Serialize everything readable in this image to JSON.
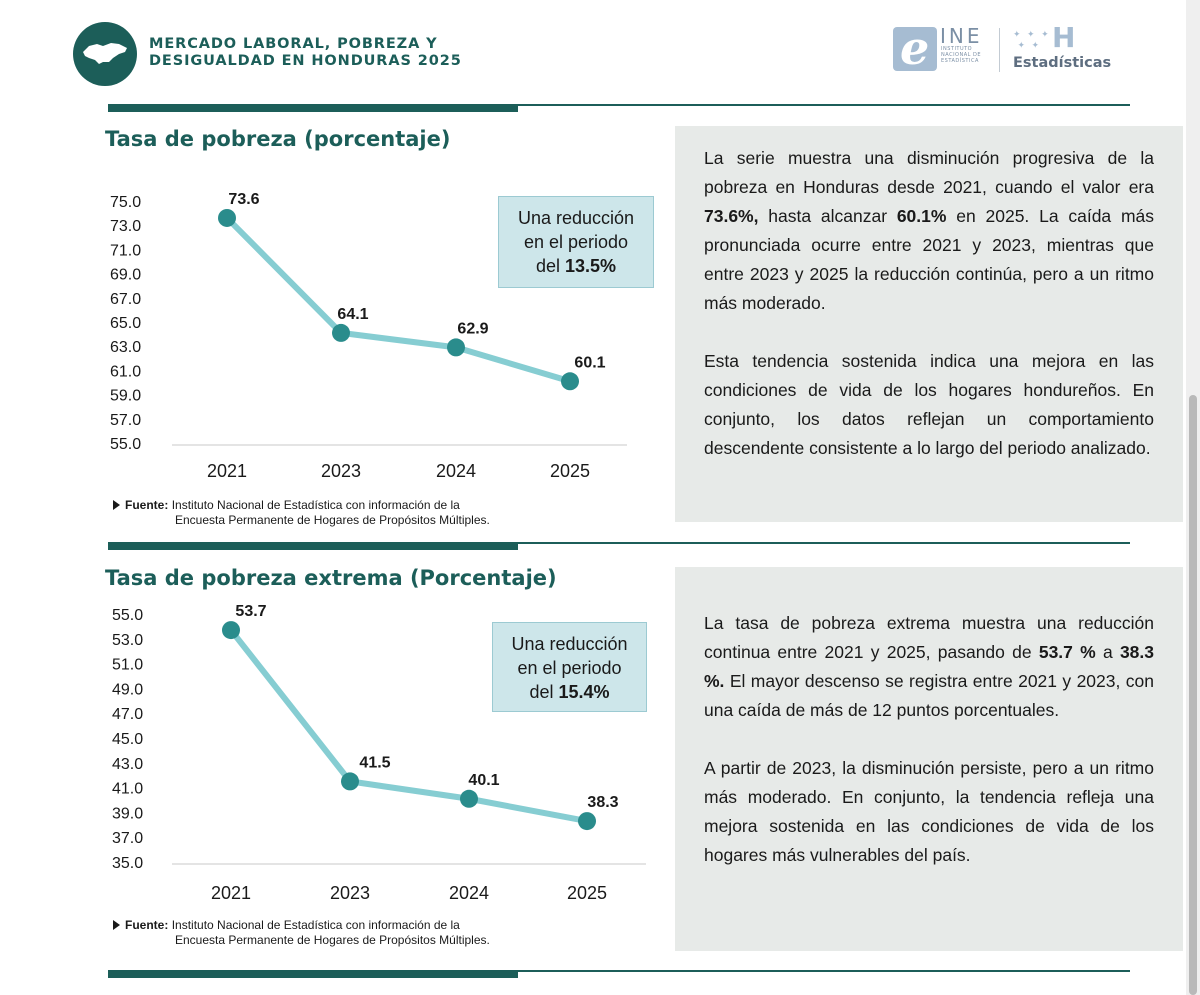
{
  "header": {
    "title_line1": "MERCADO LABORAL, POBREZA Y",
    "title_line2": "DESIGUALDAD EN HONDURAS 2025",
    "logo_ine": "INE",
    "logo_ine_sub1": "INSTITUTO",
    "logo_ine_sub2": "NACIONAL DE",
    "logo_ine_sub3": "ESTADÍSTICA",
    "logo_h_brand": "Estadísticas",
    "brand_color": "#1c5e59"
  },
  "sections": [
    {
      "title": "Tasa de pobreza (porcentaje)",
      "callout": {
        "line1": "Una reducción",
        "line2": "en el periodo",
        "line3_prefix": "del ",
        "line3_value": "13.5%"
      },
      "source_label": "Fuente:",
      "source_text1": "Instituto Nacional de Estadística con información de la",
      "source_text2": "Encuesta Permanente de Hogares de Propósitos Múltiples.",
      "paragraph1": [
        {
          "t": "La serie muestra una disminución progresiva de la pobreza en Honduras desde 2021, cuando el valor era "
        },
        {
          "t": "73.6%,",
          "b": true
        },
        {
          "t": " hasta alcanzar "
        },
        {
          "t": "60.1%",
          "b": true
        },
        {
          "t": " en 2025. La caída más pronunciada ocurre entre 2021 y 2023, mientras que entre 2023 y 2025 la reducción continúa, pero a un ritmo más moderado."
        }
      ],
      "paragraph2": [
        {
          "t": "Esta tendencia sostenida indica una mejora en las condiciones de vida de los hogares hondureños. En conjunto, los datos reflejan un comportamiento descendente consistente a lo largo del periodo analizado."
        }
      ]
    },
    {
      "title": "Tasa de pobreza extrema (Porcentaje)",
      "callout": {
        "line1": "Una reducción",
        "line2": "en el periodo",
        "line3_prefix": "del ",
        "line3_value": "15.4%"
      },
      "source_label": "Fuente:",
      "source_text1": "Instituto Nacional de Estadística con información de la",
      "source_text2": "Encuesta Permanente de Hogares de Propósitos Múltiples.",
      "paragraph1": [
        {
          "t": "La tasa de pobreza extrema muestra una reducción continua entre 2021 y 2025, pasando de "
        },
        {
          "t": "53.7 %",
          "b": true
        },
        {
          "t": " a "
        },
        {
          "t": "38.3 %.",
          "b": true
        },
        {
          "t": " El mayor descenso se registra entre 2021 y 2023, con una caída de más de 12 puntos porcentuales."
        }
      ],
      "paragraph2": [
        {
          "t": "A partir de 2023, la disminución persiste, pero a un ritmo más moderado. En conjunto, la tendencia refleja una mejora sostenida en las condiciones de vida de los hogares más vulnerables del país."
        }
      ]
    }
  ],
  "chart_data": [
    {
      "type": "line",
      "title": "Tasa de pobreza (porcentaje)",
      "categories": [
        "2021",
        "2023",
        "2024",
        "2025"
      ],
      "values": [
        73.6,
        64.1,
        62.9,
        60.1
      ],
      "value_labels": [
        "73.6",
        "64.1",
        "62.9",
        "60.1"
      ],
      "ylim": [
        55.0,
        75.0
      ],
      "yticks": [
        "55.0",
        "57.0",
        "59.0",
        "61.0",
        "63.0",
        "65.0",
        "67.0",
        "69.0",
        "71.0",
        "73.0",
        "75.0"
      ],
      "grid": false,
      "line_color": "#86cdd2",
      "marker_color": "#2a8c8c"
    },
    {
      "type": "line",
      "title": "Tasa de pobreza extrema (Porcentaje)",
      "categories": [
        "2021",
        "2023",
        "2024",
        "2025"
      ],
      "values": [
        53.7,
        41.5,
        40.1,
        38.3
      ],
      "value_labels": [
        "53.7",
        "41.5",
        "40.1",
        "38.3"
      ],
      "ylim": [
        35.0,
        55.0
      ],
      "yticks": [
        "35.0",
        "37.0",
        "39.0",
        "41.0",
        "43.0",
        "45.0",
        "47.0",
        "49.0",
        "51.0",
        "53.0",
        "55.0"
      ],
      "grid": false,
      "line_color": "#86cdd2",
      "marker_color": "#2a8c8c"
    }
  ]
}
